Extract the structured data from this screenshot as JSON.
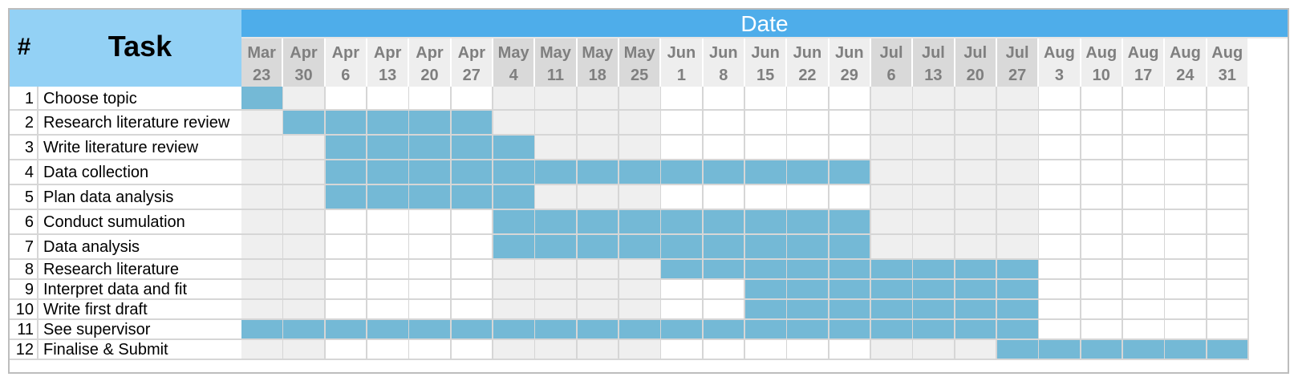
{
  "header": {
    "hash_label": "#",
    "task_label": "Task",
    "date_label": "Date"
  },
  "colors": {
    "header_light": "#93d1f5",
    "date_bar": "#4eadea",
    "bar_fill": "#74b9d6",
    "shade": "#efefef"
  },
  "chart_data": {
    "type": "table",
    "weeks": [
      {
        "month": "Mar",
        "day": "23"
      },
      {
        "month": "Apr",
        "day": "30"
      },
      {
        "month": "Apr",
        "day": "6"
      },
      {
        "month": "Apr",
        "day": "13"
      },
      {
        "month": "Apr",
        "day": "20"
      },
      {
        "month": "Apr",
        "day": "27"
      },
      {
        "month": "May",
        "day": "4"
      },
      {
        "month": "May",
        "day": "11"
      },
      {
        "month": "May",
        "day": "18"
      },
      {
        "month": "May",
        "day": "25"
      },
      {
        "month": "Jun",
        "day": "1"
      },
      {
        "month": "Jun",
        "day": "8"
      },
      {
        "month": "Jun",
        "day": "15"
      },
      {
        "month": "Jun",
        "day": "22"
      },
      {
        "month": "Jun",
        "day": "29"
      },
      {
        "month": "Jul",
        "day": "6"
      },
      {
        "month": "Jul",
        "day": "13"
      },
      {
        "month": "Jul",
        "day": "20"
      },
      {
        "month": "Jul",
        "day": "27"
      },
      {
        "month": "Aug",
        "day": "3"
      },
      {
        "month": "Aug",
        "day": "10"
      },
      {
        "month": "Aug",
        "day": "17"
      },
      {
        "month": "Aug",
        "day": "24"
      },
      {
        "month": "Aug",
        "day": "31"
      }
    ],
    "tasks": [
      {
        "num": "1",
        "name": "Choose topic",
        "start_week": 0,
        "end_week": 0
      },
      {
        "num": "2",
        "name": "Research literature review",
        "start_week": 1,
        "end_week": 5
      },
      {
        "num": "3",
        "name": "Write literature review",
        "start_week": 2,
        "end_week": 6
      },
      {
        "num": "4",
        "name": "Data collection",
        "start_week": 2,
        "end_week": 14
      },
      {
        "num": "5",
        "name": "Plan data analysis",
        "start_week": 2,
        "end_week": 6
      },
      {
        "num": "6",
        "name": "Conduct sumulation",
        "start_week": 6,
        "end_week": 14
      },
      {
        "num": "7",
        "name": "Data analysis",
        "start_week": 6,
        "end_week": 14
      },
      {
        "num": "8",
        "name": "Research literature",
        "start_week": 10,
        "end_week": 18
      },
      {
        "num": "9",
        "name": "Interpret data and fit",
        "start_week": 12,
        "end_week": 18
      },
      {
        "num": "10",
        "name": "Write first draft",
        "start_week": 12,
        "end_week": 18
      },
      {
        "num": "11",
        "name": "See supervisor",
        "start_week": 0,
        "end_week": 18
      },
      {
        "num": "12",
        "name": "Finalise & Submit",
        "start_week": 18,
        "end_week": 23
      }
    ]
  }
}
